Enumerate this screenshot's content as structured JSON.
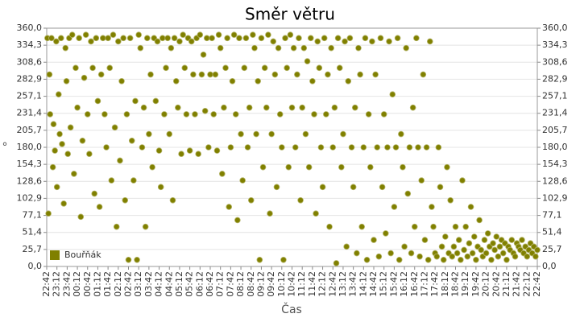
{
  "chart_data": {
    "type": "scatter",
    "title": "Směr větru",
    "xlabel": "Čas",
    "ylabel": "°",
    "legend": "lower left",
    "grid": true,
    "xlim": [
      0,
      1440
    ],
    "xticks": [
      {
        "value": 0,
        "label": "22:42"
      },
      {
        "value": 30,
        "label": "23:12"
      },
      {
        "value": 60,
        "label": "23:42"
      },
      {
        "value": 90,
        "label": "00:12"
      },
      {
        "value": 120,
        "label": "00:42"
      },
      {
        "value": 150,
        "label": "01:12"
      },
      {
        "value": 180,
        "label": "01:42"
      },
      {
        "value": 210,
        "label": "02:12"
      },
      {
        "value": 240,
        "label": "02:42"
      },
      {
        "value": 270,
        "label": "03:12"
      },
      {
        "value": 300,
        "label": "03:42"
      },
      {
        "value": 330,
        "label": "04:12"
      },
      {
        "value": 360,
        "label": "04:42"
      },
      {
        "value": 390,
        "label": "05:12"
      },
      {
        "value": 420,
        "label": "05:42"
      },
      {
        "value": 450,
        "label": "06:12"
      },
      {
        "value": 480,
        "label": "06:42"
      },
      {
        "value": 510,
        "label": "07:12"
      },
      {
        "value": 540,
        "label": "07:42"
      },
      {
        "value": 570,
        "label": "08:12"
      },
      {
        "value": 600,
        "label": "08:42"
      },
      {
        "value": 630,
        "label": "09:12"
      },
      {
        "value": 660,
        "label": "09:42"
      },
      {
        "value": 690,
        "label": "10:12"
      },
      {
        "value": 720,
        "label": "10:42"
      },
      {
        "value": 750,
        "label": "11:12"
      },
      {
        "value": 780,
        "label": "11:42"
      },
      {
        "value": 810,
        "label": "12:12"
      },
      {
        "value": 840,
        "label": "12:42"
      },
      {
        "value": 870,
        "label": "13:12"
      },
      {
        "value": 900,
        "label": "13:42"
      },
      {
        "value": 930,
        "label": "14:12"
      },
      {
        "value": 960,
        "label": "14:42"
      },
      {
        "value": 990,
        "label": "15:12"
      },
      {
        "value": 1020,
        "label": "15:42"
      },
      {
        "value": 1050,
        "label": "16:12"
      },
      {
        "value": 1080,
        "label": "16:42"
      },
      {
        "value": 1110,
        "label": "17:12"
      },
      {
        "value": 1140,
        "label": "17:42"
      },
      {
        "value": 1170,
        "label": "18:12"
      },
      {
        "value": 1200,
        "label": "18:42"
      },
      {
        "value": 1230,
        "label": "19:12"
      },
      {
        "value": 1260,
        "label": "19:42"
      },
      {
        "value": 1290,
        "label": "20:12"
      },
      {
        "value": 1320,
        "label": "20:42"
      },
      {
        "value": 1350,
        "label": "21:12"
      },
      {
        "value": 1380,
        "label": "21:42"
      },
      {
        "value": 1410,
        "label": "22:12"
      },
      {
        "value": 1440,
        "label": "22:42"
      }
    ],
    "ylim": [
      0,
      360
    ],
    "yticks": [
      {
        "value": 0,
        "label": "0,0"
      },
      {
        "value": 25.7,
        "label": "25,7"
      },
      {
        "value": 51.4,
        "label": "51,4"
      },
      {
        "value": 77.1,
        "label": "77,1"
      },
      {
        "value": 102.9,
        "label": "102,9"
      },
      {
        "value": 128.6,
        "label": "128,6"
      },
      {
        "value": 154.3,
        "label": "154,3"
      },
      {
        "value": 180,
        "label": "180,0"
      },
      {
        "value": 205.7,
        "label": "205,7"
      },
      {
        "value": 231.4,
        "label": "231,4"
      },
      {
        "value": 257.1,
        "label": "257,1"
      },
      {
        "value": 282.9,
        "label": "282,9"
      },
      {
        "value": 308.6,
        "label": "308,6"
      },
      {
        "value": 334.3,
        "label": "334,3"
      },
      {
        "value": 360,
        "label": "360,0"
      }
    ],
    "series": [
      {
        "name": "Bouřňák",
        "color": "#808000",
        "x": [
          2,
          5,
          8,
          10,
          14,
          18,
          20,
          24,
          28,
          30,
          35,
          38,
          42,
          45,
          50,
          55,
          58,
          62,
          66,
          70,
          75,
          80,
          85,
          90,
          95,
          100,
          105,
          110,
          115,
          120,
          125,
          130,
          135,
          140,
          145,
          150,
          155,
          160,
          165,
          170,
          175,
          180,
          185,
          190,
          195,
          200,
          205,
          210,
          215,
          220,
          225,
          230,
          235,
          240,
          245,
          250,
          255,
          260,
          265,
          270,
          275,
          280,
          285,
          290,
          295,
          300,
          305,
          310,
          315,
          320,
          325,
          330,
          335,
          340,
          345,
          350,
          355,
          360,
          365,
          370,
          375,
          380,
          385,
          390,
          395,
          400,
          405,
          410,
          415,
          420,
          425,
          430,
          435,
          440,
          445,
          450,
          455,
          460,
          465,
          470,
          475,
          480,
          485,
          490,
          495,
          500,
          505,
          510,
          515,
          520,
          525,
          530,
          535,
          540,
          545,
          550,
          555,
          560,
          565,
          570,
          575,
          580,
          585,
          590,
          595,
          600,
          605,
          610,
          615,
          620,
          625,
          630,
          635,
          640,
          645,
          650,
          655,
          660,
          665,
          670,
          675,
          680,
          685,
          690,
          695,
          700,
          705,
          710,
          715,
          720,
          725,
          730,
          735,
          740,
          745,
          750,
          755,
          760,
          765,
          770,
          775,
          780,
          785,
          790,
          795,
          800,
          805,
          810,
          815,
          820,
          825,
          830,
          835,
          840,
          845,
          850,
          855,
          860,
          865,
          870,
          875,
          880,
          885,
          890,
          895,
          900,
          905,
          910,
          915,
          920,
          925,
          930,
          935,
          940,
          945,
          950,
          955,
          960,
          965,
          970,
          975,
          980,
          985,
          990,
          995,
          1000,
          1005,
          1010,
          1015,
          1020,
          1025,
          1030,
          1035,
          1040,
          1045,
          1050,
          1055,
          1060,
          1065,
          1070,
          1075,
          1080,
          1085,
          1090,
          1095,
          1100,
          1105,
          1110,
          1115,
          1120,
          1125,
          1130,
          1135,
          1140,
          1145,
          1150,
          1155,
          1160,
          1165,
          1170,
          1175,
          1180,
          1185,
          1190,
          1195,
          1200,
          1205,
          1210,
          1215,
          1220,
          1225,
          1230,
          1235,
          1240,
          1245,
          1250,
          1255,
          1260,
          1265,
          1270,
          1275,
          1280,
          1285,
          1290,
          1295,
          1300,
          1305,
          1310,
          1315,
          1320,
          1325,
          1330,
          1335,
          1340,
          1345,
          1350,
          1355,
          1360,
          1365,
          1370,
          1375,
          1380,
          1385,
          1390,
          1395,
          1400,
          1405,
          1410,
          1415,
          1420,
          1425,
          1430,
          1435,
          1440
        ],
        "values": [
          345,
          80,
          290,
          230,
          345,
          150,
          215,
          175,
          340,
          120,
          260,
          200,
          345,
          185,
          95,
          330,
          280,
          170,
          345,
          210,
          350,
          140,
          300,
          240,
          345,
          75,
          190,
          285,
          350,
          230,
          170,
          340,
          300,
          110,
          345,
          250,
          90,
          290,
          345,
          230,
          180,
          345,
          300,
          130,
          350,
          210,
          60,
          340,
          160,
          280,
          345,
          100,
          230,
          10,
          345,
          190,
          130,
          250,
          10,
          350,
          330,
          180,
          240,
          60,
          345,
          200,
          290,
          150,
          345,
          250,
          340,
          175,
          120,
          345,
          230,
          300,
          345,
          200,
          330,
          100,
          345,
          280,
          240,
          340,
          170,
          350,
          300,
          230,
          345,
          175,
          340,
          290,
          230,
          345,
          170,
          350,
          290,
          320,
          235,
          345,
          180,
          290,
          345,
          230,
          290,
          175,
          350,
          330,
          140,
          240,
          300,
          345,
          90,
          180,
          280,
          350,
          230,
          70,
          345,
          200,
          130,
          300,
          345,
          180,
          240,
          100,
          350,
          330,
          200,
          280,
          10,
          345,
          150,
          300,
          240,
          350,
          80,
          200,
          340,
          290,
          120,
          330,
          230,
          180,
          10,
          345,
          300,
          150,
          350,
          240,
          330,
          180,
          290,
          345,
          100,
          240,
          330,
          200,
          310,
          150,
          345,
          280,
          230,
          80,
          340,
          300,
          180,
          120,
          345,
          230,
          290,
          60,
          330,
          180,
          240,
          5,
          345,
          300,
          150,
          200,
          340,
          30,
          280,
          345,
          180,
          120,
          240,
          20,
          330,
          290,
          60,
          180,
          345,
          10,
          230,
          150,
          340,
          40,
          290,
          180,
          15,
          345,
          120,
          230,
          50,
          180,
          340,
          20,
          260,
          90,
          180,
          345,
          10,
          200,
          150,
          30,
          330,
          110,
          180,
          20,
          240,
          60,
          345,
          180,
          15,
          130,
          290,
          40,
          180,
          10,
          340,
          90,
          60,
          20,
          15,
          180,
          120,
          30,
          10,
          45,
          150,
          20,
          100,
          15,
          30,
          60,
          20,
          40,
          10,
          130,
          25,
          60,
          15,
          35,
          90,
          20,
          45,
          10,
          30,
          70,
          25,
          15,
          40,
          20,
          50,
          30,
          10,
          35,
          25,
          45,
          15,
          30,
          40,
          20,
          35,
          10,
          30,
          25,
          40,
          20,
          15,
          35,
          30,
          25,
          40,
          20,
          30,
          15,
          25,
          35,
          20,
          30,
          15,
          25
        ]
      }
    ]
  }
}
